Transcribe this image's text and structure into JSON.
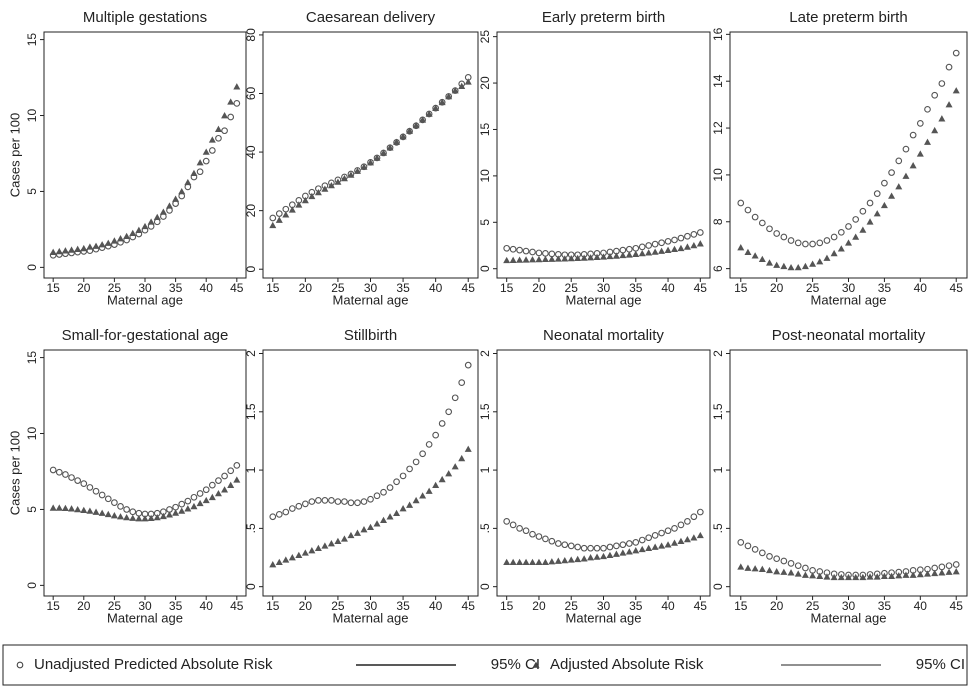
{
  "chart_data": [
    {
      "type": "scatter",
      "title": "Multiple gestations",
      "xlabel": "Maternal age",
      "ylabel": "Cases per 100",
      "x": [
        15,
        16,
        17,
        18,
        19,
        20,
        21,
        22,
        23,
        24,
        25,
        26,
        27,
        28,
        29,
        30,
        31,
        32,
        33,
        34,
        35,
        36,
        37,
        38,
        39,
        40,
        41,
        42,
        43,
        44,
        45
      ],
      "xlim": [
        13.5,
        46.5
      ],
      "xticks": [
        15,
        20,
        25,
        30,
        35,
        40,
        45
      ],
      "ylim": [
        -0.7,
        15.5
      ],
      "yticks": [
        0,
        5,
        10,
        15
      ],
      "series": [
        {
          "marker": "circle",
          "color": "#555555",
          "values": [
            0.8,
            0.85,
            0.9,
            0.95,
            1.0,
            1.05,
            1.1,
            1.2,
            1.3,
            1.4,
            1.5,
            1.65,
            1.8,
            2.0,
            2.2,
            2.45,
            2.7,
            3.0,
            3.35,
            3.75,
            4.2,
            4.7,
            5.3,
            5.95,
            6.3,
            7.0,
            7.7,
            8.5,
            9.0,
            9.9,
            10.8
          ]
        },
        {
          "marker": "triangle",
          "color": "#555555",
          "values": [
            1.0,
            1.05,
            1.1,
            1.15,
            1.2,
            1.25,
            1.35,
            1.4,
            1.5,
            1.6,
            1.75,
            1.9,
            2.05,
            2.25,
            2.45,
            2.7,
            3.0,
            3.3,
            3.65,
            4.05,
            4.5,
            5.0,
            5.6,
            6.2,
            6.9,
            7.6,
            8.4,
            9.1,
            10.0,
            10.9,
            11.9
          ]
        }
      ]
    },
    {
      "type": "scatter",
      "title": "Caesarean delivery",
      "xlabel": "Maternal age",
      "x": [
        15,
        16,
        17,
        18,
        19,
        20,
        21,
        22,
        23,
        24,
        25,
        26,
        27,
        28,
        29,
        30,
        31,
        32,
        33,
        34,
        35,
        36,
        37,
        38,
        39,
        40,
        41,
        42,
        43,
        44,
        45
      ],
      "xlim": [
        13.5,
        46.5
      ],
      "xticks": [
        15,
        20,
        25,
        30,
        35,
        40,
        45
      ],
      "ylim": [
        -3,
        81
      ],
      "yticks": [
        0,
        20,
        40,
        60,
        80
      ],
      "series": [
        {
          "marker": "circle",
          "color": "#555555",
          "values": [
            17.5,
            19,
            20.5,
            22,
            23.5,
            25,
            26.3,
            27.5,
            28.5,
            29.5,
            30.5,
            31.5,
            32.5,
            33.7,
            35,
            36.5,
            38,
            39.7,
            41.5,
            43.3,
            45.2,
            47.1,
            49,
            51,
            53,
            55,
            57,
            59,
            61,
            63.3,
            65.5
          ]
        },
        {
          "marker": "triangle",
          "color": "#555555",
          "values": [
            15,
            16.8,
            18.6,
            20.3,
            22,
            23.5,
            24.9,
            26.2,
            27.4,
            28.6,
            29.8,
            31,
            32.2,
            33.5,
            34.9,
            36.4,
            38,
            39.7,
            41.5,
            43.4,
            45.3,
            47.2,
            49.1,
            51,
            53,
            55,
            57,
            59,
            61,
            62.5,
            64
          ]
        }
      ]
    },
    {
      "type": "scatter",
      "title": "Early preterm birth",
      "xlabel": "Maternal age",
      "x": [
        15,
        16,
        17,
        18,
        19,
        20,
        21,
        22,
        23,
        24,
        25,
        26,
        27,
        28,
        29,
        30,
        31,
        32,
        33,
        34,
        35,
        36,
        37,
        38,
        39,
        40,
        41,
        42,
        43,
        44,
        45
      ],
      "xlim": [
        13.5,
        46.5
      ],
      "xticks": [
        15,
        20,
        25,
        30,
        35,
        40,
        45
      ],
      "ylim": [
        -1,
        25.5
      ],
      "yticks": [
        0,
        5,
        10,
        15,
        20,
        25
      ],
      "series": [
        {
          "marker": "circle",
          "color": "#555555",
          "values": [
            2.2,
            2.1,
            2.0,
            1.9,
            1.8,
            1.7,
            1.65,
            1.6,
            1.55,
            1.5,
            1.5,
            1.5,
            1.55,
            1.6,
            1.65,
            1.7,
            1.8,
            1.9,
            2.0,
            2.1,
            2.2,
            2.35,
            2.5,
            2.65,
            2.8,
            2.95,
            3.1,
            3.3,
            3.5,
            3.7,
            3.9
          ]
        },
        {
          "marker": "triangle",
          "color": "#555555",
          "values": [
            0.9,
            0.92,
            0.94,
            0.96,
            0.98,
            1.0,
            1.02,
            1.04,
            1.06,
            1.08,
            1.1,
            1.13,
            1.16,
            1.2,
            1.24,
            1.28,
            1.33,
            1.38,
            1.44,
            1.5,
            1.57,
            1.64,
            1.72,
            1.8,
            1.9,
            2.0,
            2.1,
            2.2,
            2.35,
            2.5,
            2.7
          ]
        }
      ]
    },
    {
      "type": "scatter",
      "title": "Late preterm birth",
      "xlabel": "Maternal age",
      "x": [
        15,
        16,
        17,
        18,
        19,
        20,
        21,
        22,
        23,
        24,
        25,
        26,
        27,
        28,
        29,
        30,
        31,
        32,
        33,
        34,
        35,
        36,
        37,
        38,
        39,
        40,
        41,
        42,
        43,
        44,
        45
      ],
      "xlim": [
        13.5,
        46.5
      ],
      "xticks": [
        15,
        20,
        25,
        30,
        35,
        40,
        45
      ],
      "ylim": [
        5.6,
        16.1
      ],
      "yticks": [
        6,
        8,
        10,
        12,
        14,
        16
      ],
      "series": [
        {
          "marker": "circle",
          "color": "#555555",
          "values": [
            8.8,
            8.5,
            8.2,
            7.95,
            7.7,
            7.5,
            7.35,
            7.2,
            7.1,
            7.05,
            7.05,
            7.1,
            7.2,
            7.35,
            7.55,
            7.8,
            8.1,
            8.45,
            8.8,
            9.2,
            9.65,
            10.1,
            10.6,
            11.1,
            11.7,
            12.2,
            12.8,
            13.4,
            13.9,
            14.6,
            15.2
          ]
        },
        {
          "marker": "triangle",
          "color": "#555555",
          "values": [
            6.9,
            6.7,
            6.55,
            6.4,
            6.25,
            6.15,
            6.1,
            6.05,
            6.05,
            6.1,
            6.2,
            6.3,
            6.45,
            6.65,
            6.85,
            7.1,
            7.35,
            7.65,
            8.0,
            8.35,
            8.7,
            9.1,
            9.5,
            9.95,
            10.4,
            10.9,
            11.4,
            11.9,
            12.4,
            13.0,
            13.6
          ]
        }
      ]
    },
    {
      "type": "scatter",
      "title": "Small-for-gestational age",
      "xlabel": "Maternal age",
      "ylabel": "Cases per 100",
      "x": [
        15,
        16,
        17,
        18,
        19,
        20,
        21,
        22,
        23,
        24,
        25,
        26,
        27,
        28,
        29,
        30,
        31,
        32,
        33,
        34,
        35,
        36,
        37,
        38,
        39,
        40,
        41,
        42,
        43,
        44,
        45
      ],
      "xlim": [
        13.5,
        46.5
      ],
      "xticks": [
        15,
        20,
        25,
        30,
        35,
        40,
        45
      ],
      "ylim": [
        -0.7,
        15.5
      ],
      "yticks": [
        0,
        5,
        10,
        15
      ],
      "series": [
        {
          "marker": "circle",
          "color": "#555555",
          "values": [
            7.6,
            7.45,
            7.3,
            7.1,
            6.9,
            6.7,
            6.45,
            6.2,
            5.95,
            5.7,
            5.45,
            5.2,
            5.0,
            4.85,
            4.75,
            4.7,
            4.7,
            4.75,
            4.85,
            5.0,
            5.15,
            5.35,
            5.55,
            5.8,
            6.05,
            6.3,
            6.6,
            6.9,
            7.2,
            7.55,
            7.9
          ]
        },
        {
          "marker": "triangle",
          "color": "#555555",
          "values": [
            5.1,
            5.1,
            5.08,
            5.05,
            5.0,
            4.95,
            4.9,
            4.83,
            4.76,
            4.68,
            4.6,
            4.53,
            4.47,
            4.43,
            4.4,
            4.4,
            4.42,
            4.47,
            4.55,
            4.65,
            4.77,
            4.9,
            5.05,
            5.2,
            5.4,
            5.6,
            5.8,
            6.05,
            6.3,
            6.6,
            6.95
          ]
        }
      ]
    },
    {
      "type": "scatter",
      "title": "Stillbirth",
      "xlabel": "Maternal age",
      "x": [
        15,
        16,
        17,
        18,
        19,
        20,
        21,
        22,
        23,
        24,
        25,
        26,
        27,
        28,
        29,
        30,
        31,
        32,
        33,
        34,
        35,
        36,
        37,
        38,
        39,
        40,
        41,
        42,
        43,
        44,
        45
      ],
      "xlim": [
        13.5,
        46.5
      ],
      "xticks": [
        15,
        20,
        25,
        30,
        35,
        40,
        45
      ],
      "ylim": [
        -0.08,
        2.03
      ],
      "yticks": [
        0,
        {
          "value": 0.5,
          "label": ".5"
        },
        1,
        1.5,
        2
      ],
      "series": [
        {
          "marker": "circle",
          "color": "#555555",
          "values": [
            0.6,
            0.62,
            0.64,
            0.67,
            0.69,
            0.71,
            0.73,
            0.74,
            0.74,
            0.74,
            0.73,
            0.73,
            0.72,
            0.72,
            0.73,
            0.75,
            0.78,
            0.81,
            0.85,
            0.9,
            0.95,
            1.01,
            1.07,
            1.14,
            1.22,
            1.3,
            1.4,
            1.5,
            1.62,
            1.75,
            1.9
          ]
        },
        {
          "marker": "triangle",
          "color": "#555555",
          "values": [
            0.19,
            0.21,
            0.23,
            0.25,
            0.27,
            0.29,
            0.31,
            0.33,
            0.35,
            0.37,
            0.39,
            0.41,
            0.44,
            0.46,
            0.49,
            0.51,
            0.54,
            0.57,
            0.6,
            0.63,
            0.67,
            0.7,
            0.74,
            0.78,
            0.82,
            0.87,
            0.92,
            0.97,
            1.03,
            1.1,
            1.18
          ]
        }
      ]
    },
    {
      "type": "scatter",
      "title": "Neonatal mortality",
      "xlabel": "Maternal age",
      "x": [
        15,
        16,
        17,
        18,
        19,
        20,
        21,
        22,
        23,
        24,
        25,
        26,
        27,
        28,
        29,
        30,
        31,
        32,
        33,
        34,
        35,
        36,
        37,
        38,
        39,
        40,
        41,
        42,
        43,
        44,
        45
      ],
      "xlim": [
        13.5,
        46.5
      ],
      "xticks": [
        15,
        20,
        25,
        30,
        35,
        40,
        45
      ],
      "ylim": [
        -0.08,
        2.03
      ],
      "yticks": [
        0,
        {
          "value": 0.5,
          "label": ".5"
        },
        1,
        1.5,
        2
      ],
      "series": [
        {
          "marker": "circle",
          "color": "#555555",
          "values": [
            0.56,
            0.53,
            0.5,
            0.48,
            0.45,
            0.43,
            0.41,
            0.39,
            0.37,
            0.36,
            0.35,
            0.34,
            0.33,
            0.33,
            0.33,
            0.33,
            0.34,
            0.35,
            0.36,
            0.37,
            0.38,
            0.4,
            0.42,
            0.44,
            0.46,
            0.48,
            0.5,
            0.53,
            0.56,
            0.6,
            0.64
          ]
        },
        {
          "marker": "triangle",
          "color": "#555555",
          "values": [
            0.21,
            0.21,
            0.21,
            0.21,
            0.21,
            0.21,
            0.21,
            0.215,
            0.22,
            0.225,
            0.23,
            0.235,
            0.24,
            0.25,
            0.255,
            0.26,
            0.27,
            0.28,
            0.29,
            0.3,
            0.31,
            0.32,
            0.33,
            0.34,
            0.35,
            0.36,
            0.375,
            0.39,
            0.405,
            0.42,
            0.44
          ]
        }
      ]
    },
    {
      "type": "scatter",
      "title": "Post-neonatal mortality",
      "xlabel": "Maternal age",
      "x": [
        15,
        16,
        17,
        18,
        19,
        20,
        21,
        22,
        23,
        24,
        25,
        26,
        27,
        28,
        29,
        30,
        31,
        32,
        33,
        34,
        35,
        36,
        37,
        38,
        39,
        40,
        41,
        42,
        43,
        44,
        45
      ],
      "xlim": [
        13.5,
        46.5
      ],
      "xticks": [
        15,
        20,
        25,
        30,
        35,
        40,
        45
      ],
      "ylim": [
        -0.08,
        2.03
      ],
      "yticks": [
        0,
        {
          "value": 0.5,
          "label": ".5"
        },
        1,
        1.5,
        2
      ],
      "series": [
        {
          "marker": "circle",
          "color": "#555555",
          "values": [
            0.38,
            0.35,
            0.32,
            0.29,
            0.26,
            0.24,
            0.22,
            0.2,
            0.18,
            0.16,
            0.14,
            0.13,
            0.12,
            0.11,
            0.105,
            0.1,
            0.1,
            0.1,
            0.105,
            0.11,
            0.115,
            0.12,
            0.125,
            0.13,
            0.14,
            0.145,
            0.15,
            0.16,
            0.17,
            0.18,
            0.19
          ]
        },
        {
          "marker": "triangle",
          "color": "#555555",
          "values": [
            0.17,
            0.16,
            0.155,
            0.15,
            0.14,
            0.13,
            0.125,
            0.12,
            0.11,
            0.1,
            0.095,
            0.09,
            0.085,
            0.08,
            0.08,
            0.08,
            0.08,
            0.08,
            0.085,
            0.085,
            0.09,
            0.09,
            0.095,
            0.1,
            0.1,
            0.105,
            0.11,
            0.115,
            0.12,
            0.125,
            0.13
          ]
        }
      ]
    }
  ],
  "legend": [
    {
      "label": "Unadjusted Predicted Absolute Risk",
      "symbol": "circle"
    },
    {
      "label": "95% CI",
      "symbol": "line"
    },
    {
      "label": "Adjusted Absolute Risk",
      "symbol": "triangle"
    },
    {
      "label": "95% CI",
      "symbol": "line"
    }
  ]
}
